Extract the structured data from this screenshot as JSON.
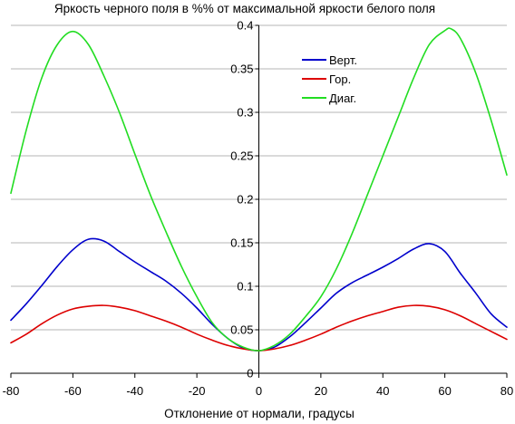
{
  "chart_data": {
    "type": "line",
    "title": "Яркость черного поля в %% от максимальной яркости белого поля",
    "xlabel": "Отклонение от нормали, градусы",
    "ylabel": "",
    "xlim": [
      -80,
      80
    ],
    "ylim": [
      0,
      0.4
    ],
    "x_ticks": [
      "-80",
      "-60",
      "-40",
      "-20",
      "0",
      "20",
      "40",
      "60",
      "80"
    ],
    "y_ticks": [
      "0",
      "0.05",
      "0.1",
      "0.15",
      "0.2",
      "0.25",
      "0.3",
      "0.35",
      "0.4"
    ],
    "grid": "horizontal",
    "legend_position": "top-right",
    "series": [
      {
        "name": "Верт.",
        "color": "#0000cc",
        "x": [
          -80,
          -75,
          -70,
          -65,
          -60,
          -55,
          -50,
          -45,
          -40,
          -35,
          -30,
          -25,
          -20,
          -15,
          -10,
          -5,
          0,
          5,
          10,
          15,
          20,
          25,
          30,
          35,
          40,
          45,
          50,
          55,
          60,
          65,
          70,
          75,
          80
        ],
        "y": [
          0.061,
          0.08,
          0.101,
          0.123,
          0.142,
          0.154,
          0.152,
          0.14,
          0.128,
          0.117,
          0.106,
          0.092,
          0.075,
          0.056,
          0.04,
          0.029,
          0.026,
          0.03,
          0.042,
          0.058,
          0.075,
          0.092,
          0.104,
          0.113,
          0.122,
          0.132,
          0.143,
          0.149,
          0.14,
          0.115,
          0.092,
          0.068,
          0.053
        ]
      },
      {
        "name": "Гор.",
        "color": "#dd0000",
        "x": [
          -80,
          -75,
          -70,
          -65,
          -60,
          -55,
          -50,
          -45,
          -40,
          -35,
          -30,
          -25,
          -20,
          -15,
          -10,
          -5,
          0,
          5,
          10,
          15,
          20,
          25,
          30,
          35,
          40,
          45,
          50,
          55,
          60,
          65,
          70,
          75,
          80
        ],
        "y": [
          0.035,
          0.045,
          0.057,
          0.067,
          0.074,
          0.077,
          0.078,
          0.076,
          0.072,
          0.066,
          0.06,
          0.053,
          0.045,
          0.038,
          0.032,
          0.028,
          0.026,
          0.028,
          0.032,
          0.038,
          0.045,
          0.053,
          0.06,
          0.066,
          0.071,
          0.076,
          0.078,
          0.077,
          0.073,
          0.066,
          0.057,
          0.048,
          0.039
        ]
      },
      {
        "name": "Диаг.",
        "color": "#22dd22",
        "x": [
          -80,
          -75,
          -70,
          -65,
          -60,
          -55,
          -50,
          -45,
          -40,
          -35,
          -30,
          -25,
          -20,
          -15,
          -10,
          -5,
          0,
          5,
          10,
          15,
          20,
          25,
          30,
          35,
          40,
          45,
          50,
          55,
          60,
          62,
          65,
          70,
          75,
          80
        ],
        "y": [
          0.207,
          0.28,
          0.34,
          0.378,
          0.393,
          0.378,
          0.342,
          0.3,
          0.252,
          0.205,
          0.163,
          0.123,
          0.088,
          0.058,
          0.04,
          0.03,
          0.026,
          0.032,
          0.045,
          0.065,
          0.088,
          0.12,
          0.16,
          0.205,
          0.25,
          0.295,
          0.34,
          0.378,
          0.394,
          0.396,
          0.385,
          0.345,
          0.29,
          0.228
        ]
      }
    ]
  }
}
